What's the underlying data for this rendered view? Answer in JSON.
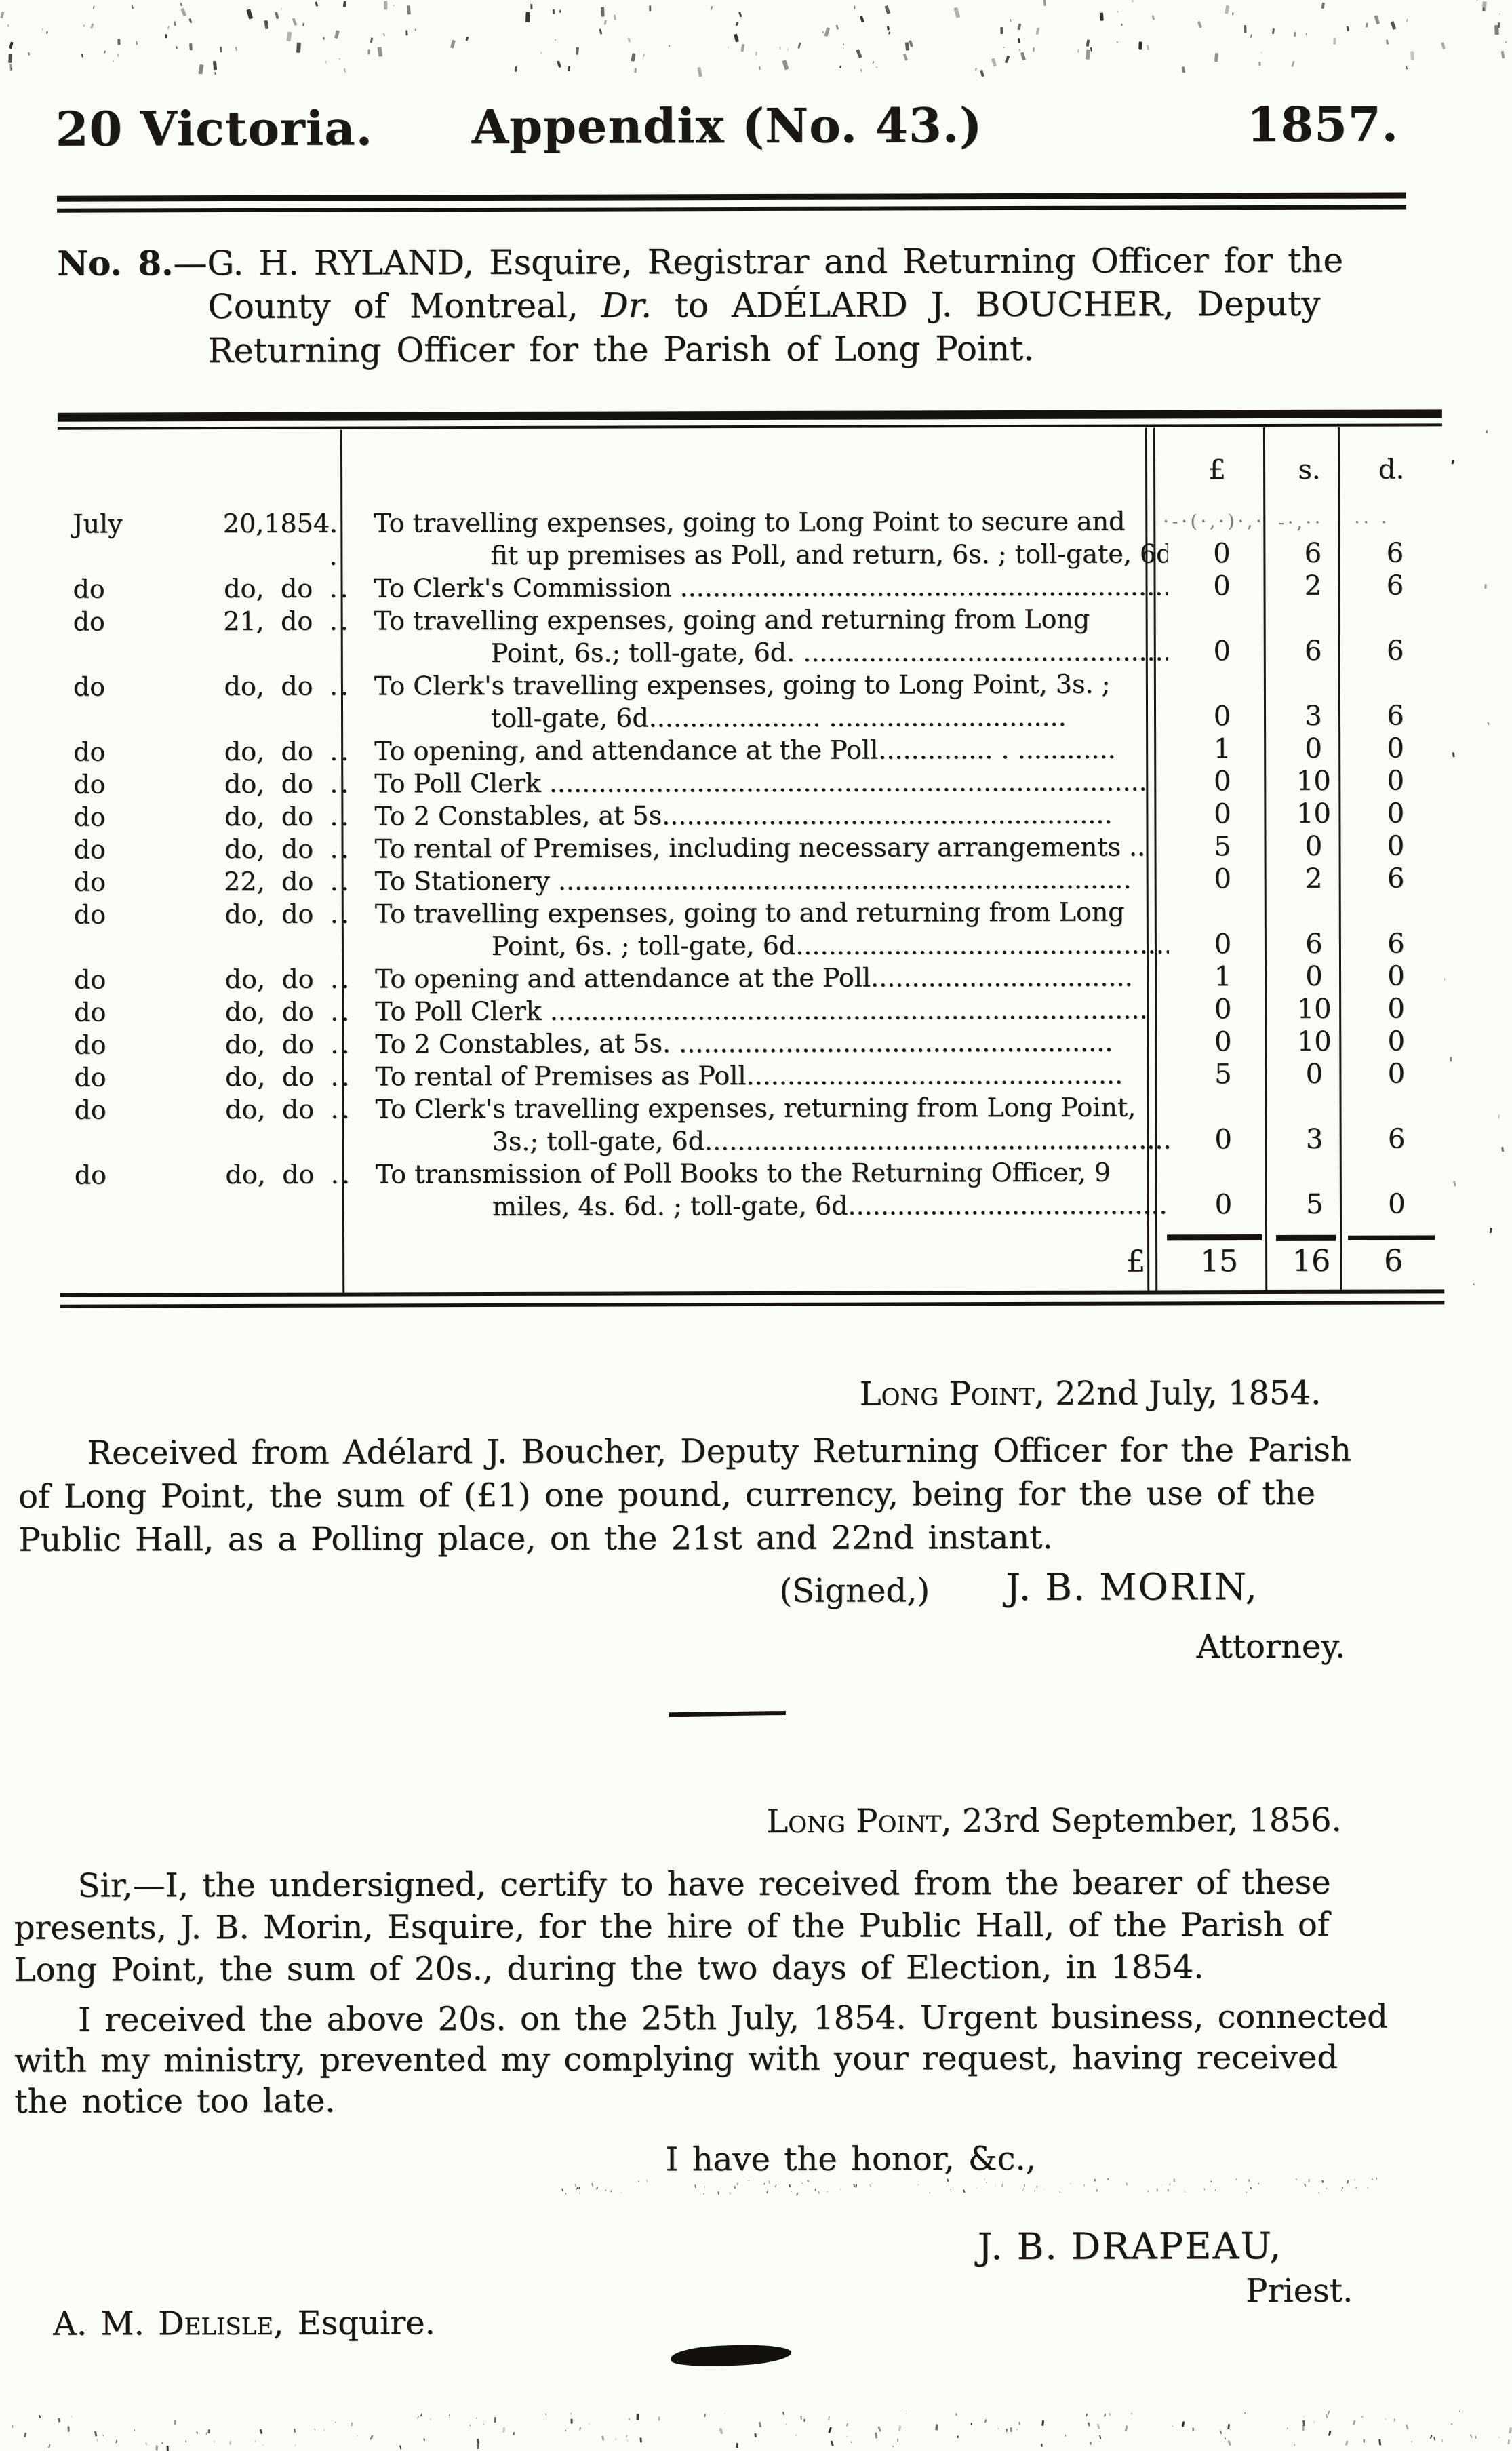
{
  "colors": {
    "ink": "#1b1713",
    "paper": "#fbfbf8"
  },
  "masthead": {
    "left": "20 Victoria.",
    "center": "Appendix (No. 43.)",
    "right": "1857."
  },
  "heading": {
    "line1_bold": "No. 8.",
    "line1_rest": "—G. H. RYLAND, Esquire, Registrar and Returning Officer for the",
    "line2_pre": "County of Montreal, ",
    "line2_italic": "Dr.",
    "line2_post": " to ADÉLARD J. BOUCHER, Deputy",
    "line3": "Returning Officer for the Parish of Long Point."
  },
  "table": {
    "headers": {
      "pounds": "£",
      "shillings": "s.",
      "pence": "d."
    },
    "rows": [
      {
        "month": "July",
        "day": "20,",
        "year": "1854.",
        "dots": ". .",
        "desc": [
          "To travelling expenses, going to Long Point to secure and",
          "fit up premises as Poll, and return, 6s. ; toll-gate, 6d."
        ],
        "pounds": "0",
        "shillings": "6",
        "pence": "6"
      },
      {
        "month": "do",
        "day": "do,",
        "year": "do",
        "dots": "..",
        "desc": [
          "To Clerk's Commission ............................................................"
        ],
        "pounds": "0",
        "shillings": "2",
        "pence": "6"
      },
      {
        "month": "do",
        "day": "21,",
        "year": "do",
        "dots": "..",
        "desc": [
          "To travelling expenses, going and returning from Long",
          "Point, 6s.; toll-gate, 6d. ..............................................."
        ],
        "pounds": "0",
        "shillings": "6",
        "pence": "6"
      },
      {
        "month": "do",
        "day": "do,",
        "year": "do",
        "dots": "..",
        "desc": [
          "To Clerk's travelling expenses, going to Long Point, 3s. ;",
          "toll-gate, 6d..................... ............................."
        ],
        "pounds": "0",
        "shillings": "3",
        "pence": "6"
      },
      {
        "month": "do",
        "day": "do,",
        "year": "do",
        "dots": "..",
        "desc": [
          "To opening, and attendance at the Poll.............. . ............"
        ],
        "pounds": "1",
        "shillings": "0",
        "pence": "0"
      },
      {
        "month": "do",
        "day": "do,",
        "year": "do",
        "dots": "..",
        "desc": [
          "To Poll Clerk ........................................................................."
        ],
        "pounds": "0",
        "shillings": "10",
        "pence": "0"
      },
      {
        "month": "do",
        "day": "do,",
        "year": "do",
        "dots": "..",
        "desc": [
          "To 2 Constables, at 5s......................................................."
        ],
        "pounds": "0",
        "shillings": "10",
        "pence": "0"
      },
      {
        "month": "do",
        "day": "do,",
        "year": "do",
        "dots": "..",
        "desc": [
          "To rental of Premises, including necessary arrangements .."
        ],
        "pounds": "5",
        "shillings": "0",
        "pence": "0"
      },
      {
        "month": "do",
        "day": "22,",
        "year": "do",
        "dots": "..",
        "desc": [
          "To Stationery ......................................................................"
        ],
        "pounds": "0",
        "shillings": "2",
        "pence": "6"
      },
      {
        "month": "do",
        "day": "do,",
        "year": "do",
        "dots": "..",
        "desc": [
          "To travelling expenses, going to and returning from Long",
          "Point, 6s. ; toll-gate, 6d................................................."
        ],
        "pounds": "0",
        "shillings": "6",
        "pence": "6"
      },
      {
        "month": "do",
        "day": "do,",
        "year": "do",
        "dots": "..",
        "desc": [
          "To opening and attendance at the Poll................................"
        ],
        "pounds": "1",
        "shillings": "0",
        "pence": "0"
      },
      {
        "month": "do",
        "day": "do,",
        "year": "do",
        "dots": "..",
        "desc": [
          "To Poll Clerk ........................................................................."
        ],
        "pounds": "0",
        "shillings": "10",
        "pence": "0"
      },
      {
        "month": "do",
        "day": "do,",
        "year": "do",
        "dots": "..",
        "desc": [
          "To 2 Constables, at 5s. ....................................................."
        ],
        "pounds": "0",
        "shillings": "10",
        "pence": "0"
      },
      {
        "month": "do",
        "day": "do,",
        "year": "do",
        "dots": "..",
        "desc": [
          "To rental of Premises as Poll.............................................."
        ],
        "pounds": "5",
        "shillings": "0",
        "pence": "0"
      },
      {
        "month": "do",
        "day": "do,",
        "year": "do",
        "dots": "..",
        "desc": [
          "To Clerk's travelling expenses, returning from Long Point,",
          "3s.; toll-gate, 6d.........................................................."
        ],
        "pounds": "0",
        "shillings": "3",
        "pence": "6"
      },
      {
        "month": "do",
        "day": "do,",
        "year": "do",
        "dots": "..",
        "desc": [
          "To transmission of Poll Books to the Returning Officer, 9",
          "miles, 4s. 6d. ; toll-gate, 6d............................................"
        ],
        "pounds": "0",
        "shillings": "5",
        "pence": "0"
      }
    ],
    "total": {
      "label": "£",
      "pounds": "15",
      "shillings": "16",
      "pence": "6"
    }
  },
  "receipt": {
    "dateline_sc": "Long Point,",
    "dateline_rest": " 22nd July, 1854.",
    "lines": [
      "Received from Adélard J. Boucher, Deputy Returning Officer for the Parish",
      "of Long Point, the sum of (£1) one pound, currency, being for the use of the",
      "Public Hall, as a Polling place, on the 21st and 22nd instant."
    ],
    "signed_label": "(Signed,)",
    "signed_name": "J. B. MORIN,",
    "signed_title": "Attorney."
  },
  "letter": {
    "dateline_sc": "Long Point,",
    "dateline_rest": " 23rd September, 1856.",
    "para1": [
      "Sir,—I, the undersigned, certify to have received from the bearer of these",
      "presents, J. B. Morin, Esquire, for the hire of the Public Hall, of the Parish of",
      "Long Point, the sum of 20s., during the two days of Election, in 1854."
    ],
    "para2": [
      "I received the above 20s. on the 25th July, 1854.  Urgent business, connected",
      "with my ministry, prevented my complying with your request, having received",
      "the notice too late."
    ],
    "closing": "I have the honor, &c.,",
    "signature_name": "J. B. DRAPEAU,",
    "signature_title": "Priest.",
    "addressee_sc": "A. M. Delisle,",
    "addressee_rest": " Esquire."
  }
}
